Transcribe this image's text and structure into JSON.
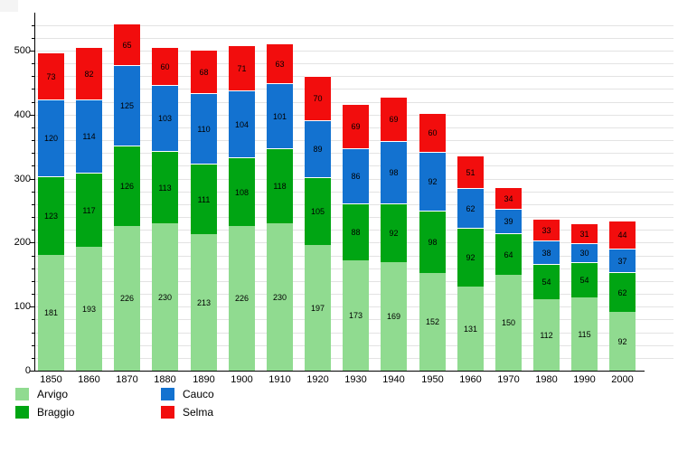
{
  "chart_data": {
    "type": "bar",
    "stacked": true,
    "title": "",
    "xlabel": "",
    "ylabel": "",
    "categories": [
      "1850",
      "1860",
      "1870",
      "1880",
      "1890",
      "1900",
      "1910",
      "1920",
      "1930",
      "1940",
      "1950",
      "1960",
      "1970",
      "1980",
      "1990",
      "2000"
    ],
    "series": [
      {
        "name": "Arvigo",
        "color": "#90db90",
        "values": [
          181,
          193,
          226,
          230,
          213,
          226,
          230,
          197,
          173,
          169,
          152,
          131,
          150,
          112,
          115,
          92
        ]
      },
      {
        "name": "Braggio",
        "color": "#00a513",
        "values": [
          123,
          117,
          126,
          113,
          111,
          108,
          118,
          105,
          88,
          92,
          98,
          92,
          64,
          54,
          54,
          62
        ]
      },
      {
        "name": "Cauco",
        "color": "#1372d0",
        "values": [
          120,
          114,
          125,
          103,
          110,
          104,
          101,
          89,
          86,
          98,
          92,
          62,
          39,
          38,
          30,
          37
        ]
      },
      {
        "name": "Selma",
        "color": "#f20d0d",
        "values": [
          73,
          82,
          65,
          60,
          68,
          71,
          63,
          70,
          69,
          69,
          60,
          51,
          34,
          33,
          31,
          44
        ]
      }
    ],
    "ylim": [
      0,
      560
    ],
    "y_tick_labels": [
      "0",
      "100",
      "200",
      "300",
      "400",
      "500"
    ],
    "grid": true,
    "grid_step": 20,
    "grid_max": 540,
    "legend_position": "bottom-left",
    "axis_color": "#000000",
    "grid_color": "#e3e3e3",
    "value_label_color": "#000000"
  }
}
